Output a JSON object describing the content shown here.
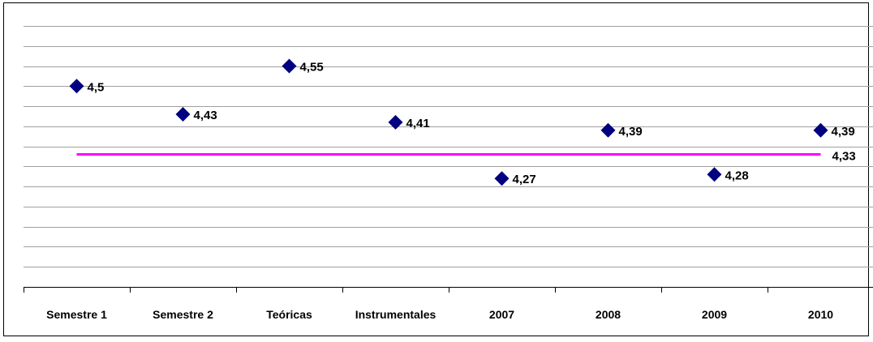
{
  "chart_data": {
    "type": "scatter",
    "title": "",
    "xlabel": "",
    "ylabel": "",
    "categories": [
      "Semestre 1",
      "Semestre 2",
      "Teóricas",
      "Instrumentales",
      "2007",
      "2008",
      "2009",
      "2010"
    ],
    "values": [
      4.5,
      4.43,
      4.55,
      4.41,
      4.27,
      4.39,
      4.28,
      4.39
    ],
    "value_labels": [
      "4,5",
      "4,43",
      "4,55",
      "4,41",
      "4,27",
      "4,39",
      "4,28",
      "4,39"
    ],
    "reference_line": {
      "value": 4.33,
      "label": "4,33",
      "color": "#FF00FF"
    },
    "ylim": [
      4.0,
      4.65
    ],
    "y_gridline_step": 0.05,
    "y_axis_visible": false,
    "grid": true,
    "legend": "none",
    "colors": {
      "marker": "#000080",
      "grid": "#A0A0A0",
      "axis": "#000000",
      "text": "#000000"
    }
  }
}
